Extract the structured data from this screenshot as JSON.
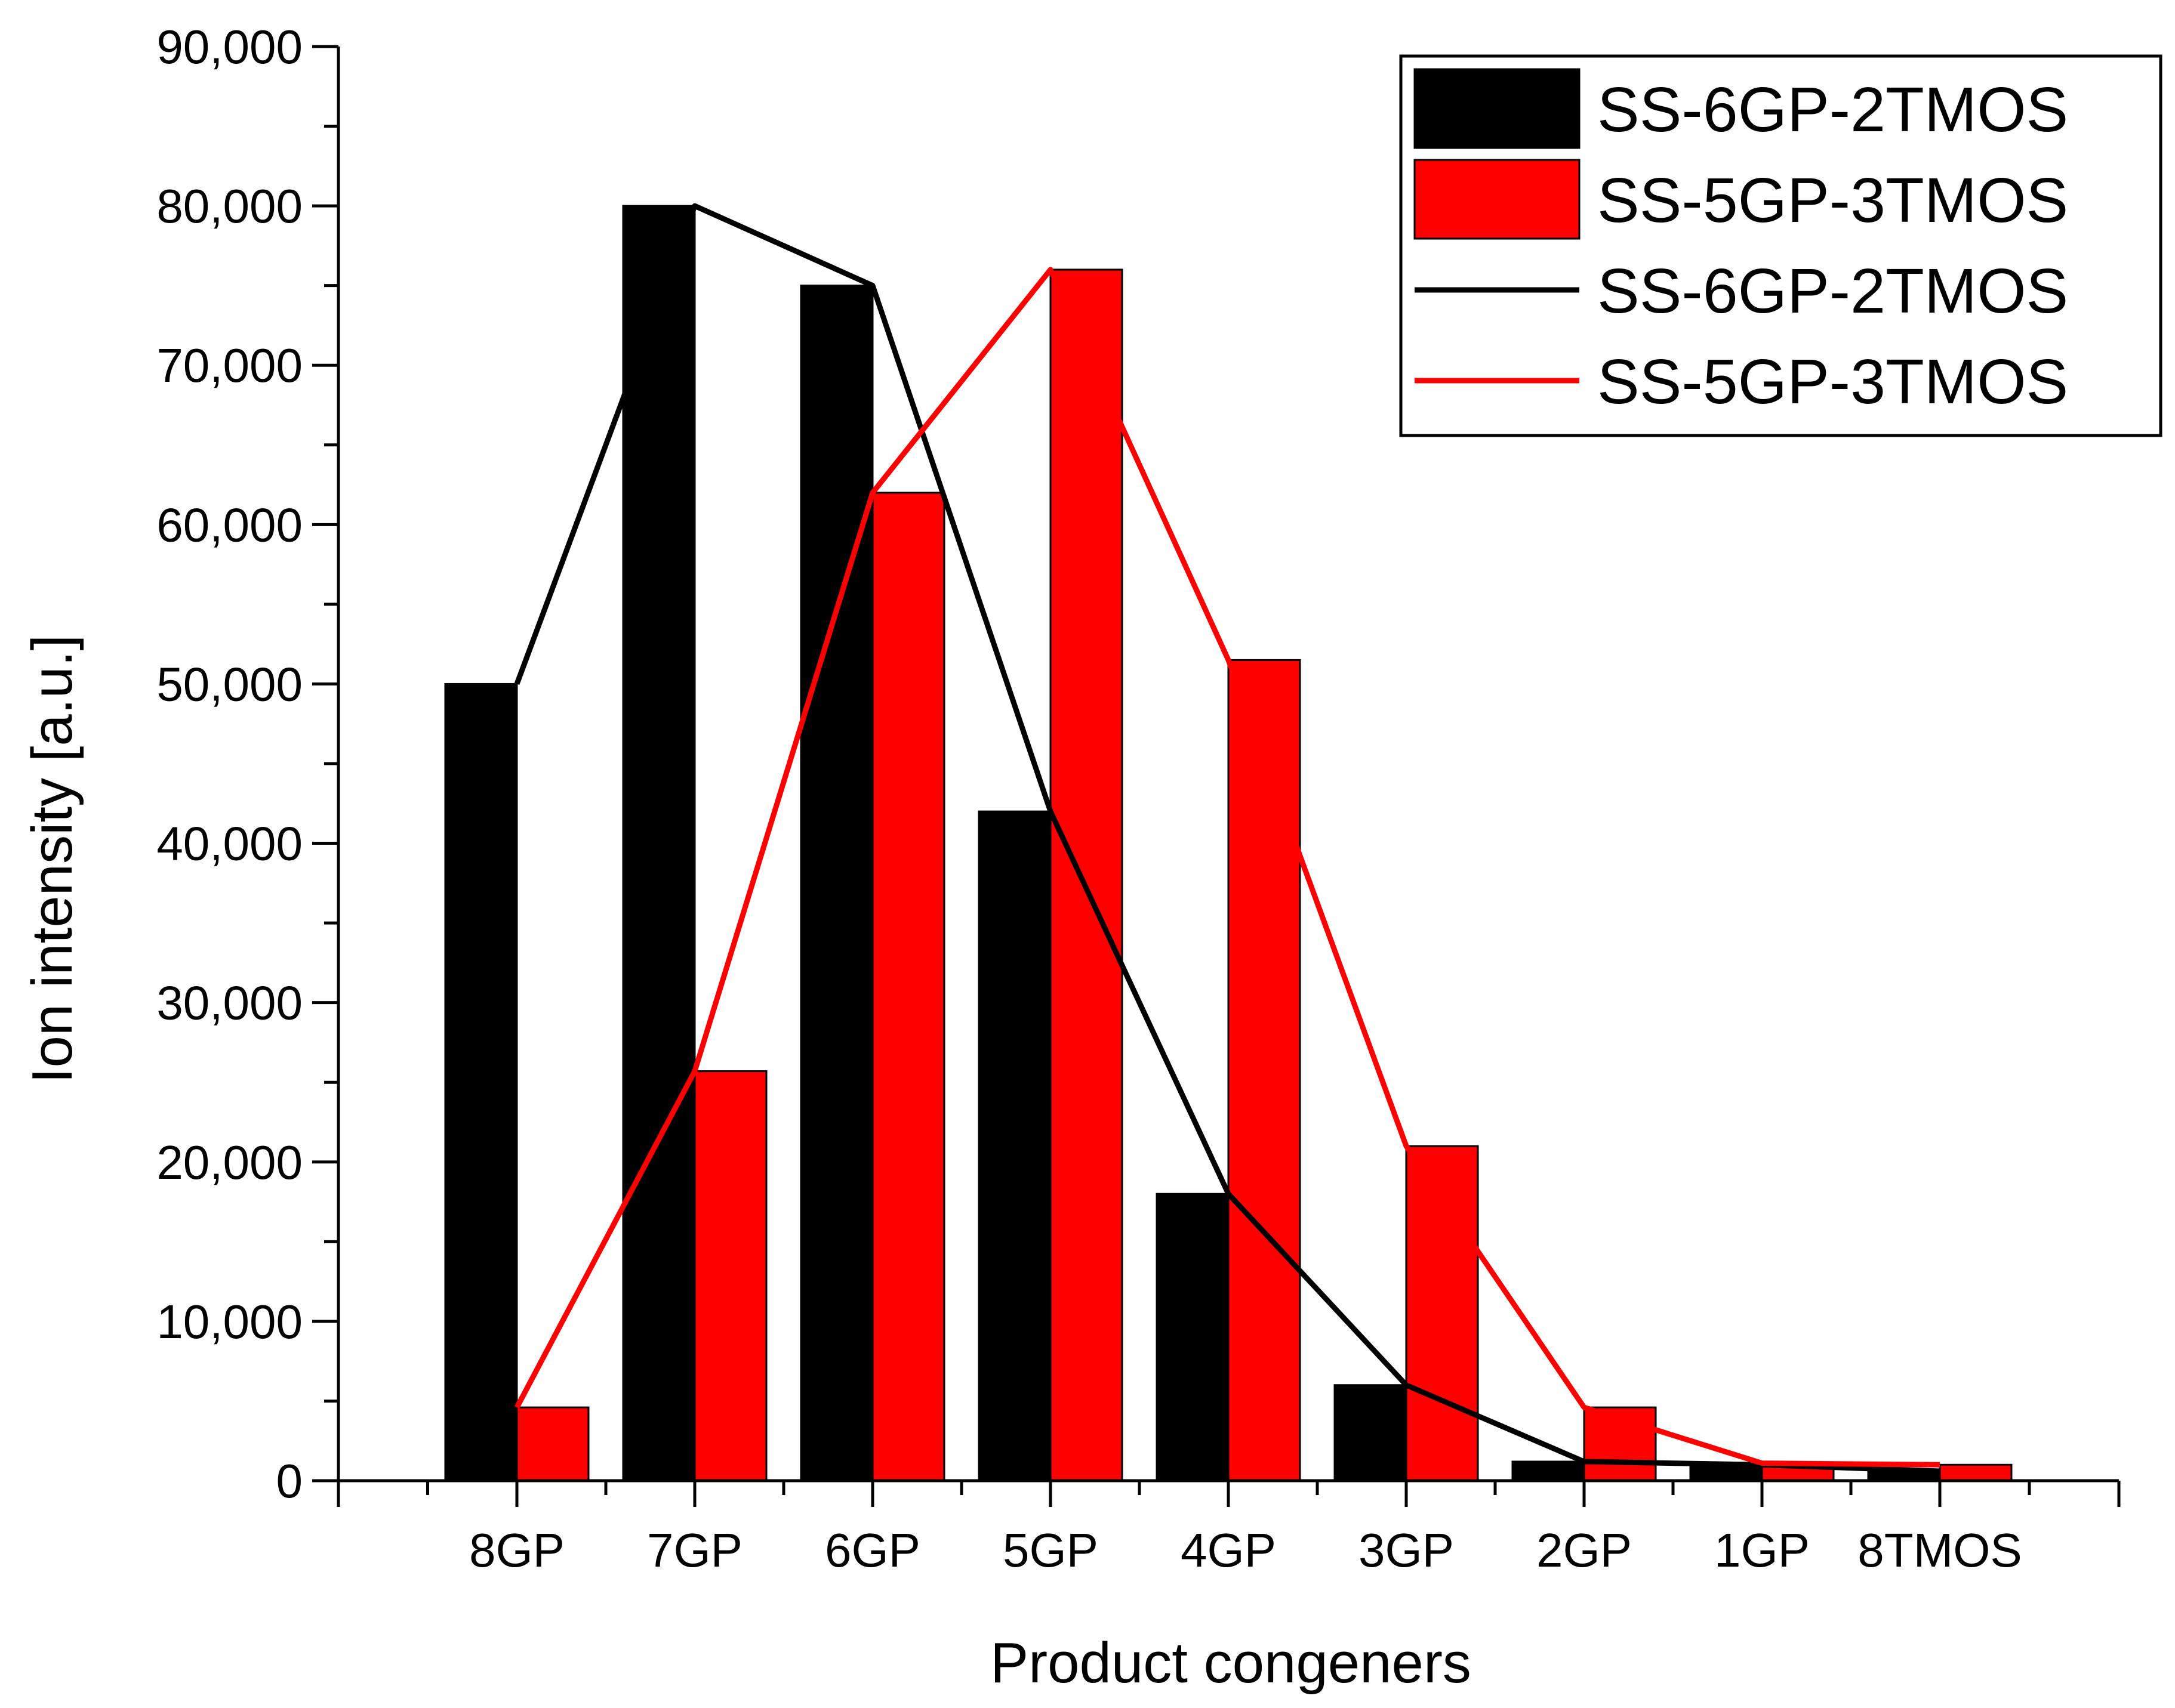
{
  "chart_data": {
    "type": "bar",
    "title": "",
    "xlabel": "Product congeners",
    "ylabel": "Ion intensity [a.u.]",
    "categories": [
      "8GP",
      "7GP",
      "6GP",
      "5GP",
      "4GP",
      "3GP",
      "2GP",
      "1GP",
      "8TMOS"
    ],
    "ylim": [
      0,
      90000
    ],
    "yticks": [
      0,
      10000,
      20000,
      30000,
      40000,
      50000,
      60000,
      70000,
      80000,
      90000
    ],
    "ytick_labels": [
      "0",
      "10,000",
      "20,000",
      "30,000",
      "40,000",
      "50,000",
      "60,000",
      "70,000",
      "80,000",
      "90,000"
    ],
    "grid": false,
    "legend_position": "top-right",
    "series": [
      {
        "name": "SS-6GP-2TMOS",
        "kind": "bar",
        "color": "#000000",
        "values": [
          50000,
          80000,
          75000,
          42000,
          18000,
          6000,
          1200,
          1000,
          600
        ]
      },
      {
        "name": "SS-5GP-3TMOS",
        "kind": "bar",
        "color": "#ff0000",
        "values": [
          4600,
          25700,
          62000,
          76000,
          51500,
          21000,
          4600,
          1100,
          1000
        ]
      },
      {
        "name": "SS-6GP-2TMOS",
        "kind": "line",
        "color": "#000000",
        "values": [
          50000,
          80000,
          75000,
          42000,
          18000,
          6000,
          1200,
          1000,
          600
        ]
      },
      {
        "name": "SS-5GP-3TMOS",
        "kind": "line",
        "color": "#ff0000",
        "values": [
          4600,
          25700,
          62000,
          76000,
          51500,
          21000,
          4600,
          1100,
          1000
        ]
      }
    ]
  }
}
